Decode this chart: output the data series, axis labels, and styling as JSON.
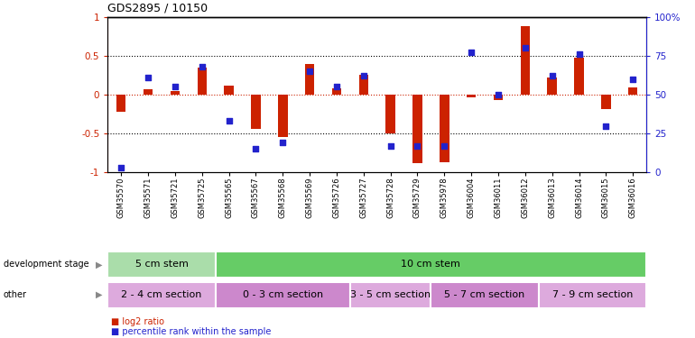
{
  "title": "GDS2895 / 10150",
  "samples": [
    "GSM35570",
    "GSM35571",
    "GSM35721",
    "GSM35725",
    "GSM35565",
    "GSM35567",
    "GSM35568",
    "GSM35569",
    "GSM35726",
    "GSM35727",
    "GSM35728",
    "GSM35729",
    "GSM35978",
    "GSM36004",
    "GSM36011",
    "GSM36012",
    "GSM36013",
    "GSM36014",
    "GSM36015",
    "GSM36016"
  ],
  "log2_ratio": [
    -0.22,
    0.07,
    0.05,
    0.35,
    0.12,
    -0.44,
    -0.55,
    0.4,
    0.08,
    0.25,
    -0.5,
    -0.88,
    -0.87,
    -0.04,
    -0.07,
    0.88,
    0.22,
    0.47,
    -0.18,
    0.09
  ],
  "percentile": [
    3,
    61,
    55,
    68,
    33,
    15,
    19,
    65,
    55,
    62,
    17,
    17,
    17,
    77,
    50,
    80,
    62,
    76,
    30,
    60
  ],
  "bar_color": "#cc2200",
  "dot_color": "#2222cc",
  "ylim_left": [
    -1,
    1
  ],
  "ylim_right": [
    0,
    100
  ],
  "tick_labels_left": [
    "-1",
    "-0.5",
    "0",
    "0.5",
    "1"
  ],
  "tick_values_left": [
    -1,
    -0.5,
    0,
    0.5,
    1
  ],
  "tick_labels_right": [
    "0",
    "25",
    "50",
    "75",
    "100%"
  ],
  "tick_values_right": [
    0,
    25,
    50,
    75,
    100
  ],
  "dev_stage_groups": [
    {
      "label": "5 cm stem",
      "start": 0,
      "end": 3,
      "color": "#aaddaa"
    },
    {
      "label": "10 cm stem",
      "start": 4,
      "end": 19,
      "color": "#66cc66"
    }
  ],
  "other_groups": [
    {
      "label": "2 - 4 cm section",
      "start": 0,
      "end": 3,
      "color": "#ddaadd"
    },
    {
      "label": "0 - 3 cm section",
      "start": 4,
      "end": 8,
      "color": "#cc88cc"
    },
    {
      "label": "3 - 5 cm section",
      "start": 9,
      "end": 11,
      "color": "#ddaadd"
    },
    {
      "label": "5 - 7 cm section",
      "start": 12,
      "end": 15,
      "color": "#cc88cc"
    },
    {
      "label": "7 - 9 cm section",
      "start": 16,
      "end": 19,
      "color": "#ddaadd"
    }
  ]
}
